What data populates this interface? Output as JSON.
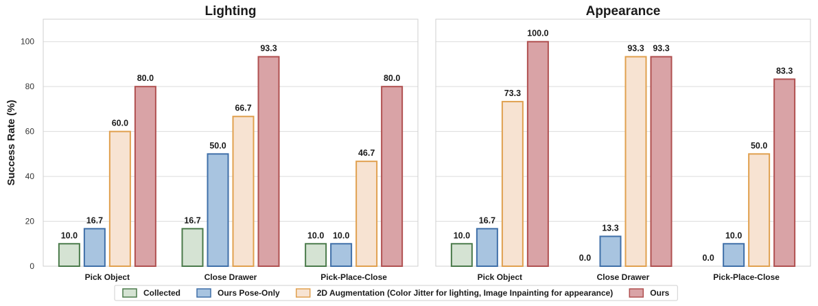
{
  "chart_data": [
    {
      "type": "bar",
      "title": "Lighting",
      "xlabel": "",
      "ylabel": "Success Rate (%)",
      "ylim": [
        0,
        110
      ],
      "yticks": [
        0,
        20,
        40,
        60,
        80,
        100
      ],
      "grid": true,
      "categories": [
        "Pick Object",
        "Close Drawer",
        "Pick-Place-Close"
      ],
      "series": [
        {
          "name": "Collected",
          "values": [
            10.0,
            16.7,
            10.0
          ],
          "labels": [
            "10.0",
            "16.7",
            "10.0"
          ]
        },
        {
          "name": "Ours Pose-Only",
          "values": [
            16.7,
            50.0,
            10.0
          ],
          "labels": [
            "16.7",
            "50.0",
            "10.0"
          ]
        },
        {
          "name": "2D Augmentation (Color Jitter for lighting, Image Inpainting for appearance)",
          "values": [
            60.0,
            66.7,
            46.7
          ],
          "labels": [
            "60.0",
            "66.7",
            "46.7"
          ]
        },
        {
          "name": "Ours",
          "values": [
            80.0,
            93.3,
            80.0
          ],
          "labels": [
            "80.0",
            "93.3",
            "80.0"
          ]
        }
      ]
    },
    {
      "type": "bar",
      "title": "Appearance",
      "xlabel": "",
      "ylabel": "",
      "ylim": [
        0,
        110
      ],
      "yticks": [
        0,
        20,
        40,
        60,
        80,
        100
      ],
      "grid": true,
      "categories": [
        "Pick Object",
        "Close Drawer",
        "Pick-Place-Close"
      ],
      "series": [
        {
          "name": "Collected",
          "values": [
            10.0,
            0.0,
            0.0
          ],
          "labels": [
            "10.0",
            "0.0",
            "0.0"
          ]
        },
        {
          "name": "Ours Pose-Only",
          "values": [
            16.7,
            13.3,
            10.0
          ],
          "labels": [
            "16.7",
            "13.3",
            "10.0"
          ]
        },
        {
          "name": "2D Augmentation (Color Jitter for lighting, Image Inpainting for appearance)",
          "values": [
            73.3,
            93.3,
            50.0
          ],
          "labels": [
            "73.3",
            "93.3",
            "50.0"
          ]
        },
        {
          "name": "Ours",
          "values": [
            100.0,
            93.3,
            83.3
          ],
          "labels": [
            "100.0",
            "93.3",
            "83.3"
          ]
        }
      ]
    }
  ],
  "legend": {
    "placement": "bottom-center",
    "items": [
      {
        "label": "Collected",
        "fill": "#d5e3d3",
        "stroke": "#4a7a4a"
      },
      {
        "label": "Ours Pose-Only",
        "fill": "#a8c4e0",
        "stroke": "#3f6fa8"
      },
      {
        "label": "2D Augmentation (Color Jitter for lighting, Image Inpainting for appearance)",
        "fill": "#f7e3d2",
        "stroke": "#e0a04e"
      },
      {
        "label": "Ours",
        "fill": "#d9a3a6",
        "stroke": "#b05050"
      }
    ]
  },
  "colors": {
    "fills": [
      "#d5e3d3",
      "#a8c4e0",
      "#f7e3d2",
      "#d9a3a6"
    ],
    "strokes": [
      "#4a7a4a",
      "#3f6fa8",
      "#e0a04e",
      "#b05050"
    ],
    "grid": "#dcdcdc",
    "frame": "#cfcfcf"
  }
}
